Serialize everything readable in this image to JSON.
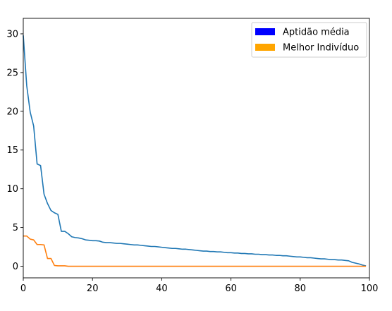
{
  "chart_data": {
    "type": "line",
    "title": "",
    "xlabel": "",
    "ylabel": "",
    "xlim": [
      0,
      100
    ],
    "ylim": [
      -1.5,
      32
    ],
    "x_ticks": [
      0,
      20,
      40,
      60,
      80,
      100
    ],
    "y_ticks": [
      0,
      5,
      10,
      15,
      20,
      25,
      30
    ],
    "x_tick_labels": [
      "0",
      "20",
      "40",
      "60",
      "80",
      "100"
    ],
    "y_tick_labels": [
      "0",
      "5",
      "10",
      "15",
      "20",
      "25",
      "30"
    ],
    "grid": false,
    "legend_position": "top-right",
    "legend": [
      {
        "label": "Aptidão média",
        "color": "#0000ff"
      },
      {
        "label": "Melhor Indivíduo",
        "color": "#ffa500"
      }
    ],
    "series": [
      {
        "color": "#1f77b4",
        "x": [
          0,
          1,
          2,
          3,
          4,
          5,
          6,
          7,
          8,
          9,
          10,
          11,
          12,
          13,
          14,
          15,
          16,
          17,
          18,
          19,
          20,
          21,
          22,
          23,
          24,
          25,
          26,
          27,
          28,
          29,
          30,
          31,
          32,
          33,
          34,
          35,
          36,
          37,
          38,
          39,
          40,
          41,
          42,
          43,
          44,
          45,
          46,
          47,
          48,
          49,
          50,
          51,
          52,
          53,
          54,
          55,
          56,
          57,
          58,
          59,
          60,
          61,
          62,
          63,
          64,
          65,
          66,
          67,
          68,
          69,
          70,
          71,
          72,
          73,
          74,
          75,
          76,
          77,
          78,
          79,
          80,
          81,
          82,
          83,
          84,
          85,
          86,
          87,
          88,
          89,
          90,
          91,
          92,
          93,
          94,
          95,
          96,
          97,
          98,
          99
        ],
        "values": [
          29.8,
          23.3,
          19.9,
          18.1,
          13.2,
          13.0,
          9.3,
          8.1,
          7.2,
          6.9,
          6.7,
          4.5,
          4.5,
          4.2,
          3.8,
          3.7,
          3.65,
          3.55,
          3.4,
          3.35,
          3.3,
          3.3,
          3.25,
          3.1,
          3.05,
          3.05,
          3.0,
          2.95,
          2.95,
          2.9,
          2.85,
          2.8,
          2.75,
          2.75,
          2.7,
          2.65,
          2.6,
          2.55,
          2.55,
          2.5,
          2.45,
          2.4,
          2.35,
          2.3,
          2.3,
          2.25,
          2.2,
          2.2,
          2.15,
          2.1,
          2.05,
          2.0,
          1.95,
          1.95,
          1.9,
          1.9,
          1.85,
          1.85,
          1.8,
          1.75,
          1.75,
          1.7,
          1.7,
          1.65,
          1.65,
          1.6,
          1.6,
          1.55,
          1.55,
          1.5,
          1.5,
          1.45,
          1.45,
          1.4,
          1.4,
          1.35,
          1.35,
          1.3,
          1.25,
          1.2,
          1.2,
          1.15,
          1.1,
          1.1,
          1.05,
          1.0,
          0.95,
          0.95,
          0.9,
          0.85,
          0.85,
          0.8,
          0.8,
          0.75,
          0.7,
          0.5,
          0.4,
          0.3,
          0.15,
          0.05
        ]
      },
      {
        "color": "#ff7f0e",
        "x": [
          0,
          1,
          2,
          3,
          4,
          5,
          6,
          7,
          8,
          9,
          10,
          11,
          12,
          13,
          14,
          15,
          16,
          17,
          18,
          19,
          20,
          21,
          22,
          23,
          24,
          25,
          26,
          27,
          28,
          29,
          30,
          31,
          32,
          33,
          34,
          35,
          36,
          37,
          38,
          39,
          40,
          41,
          42,
          43,
          44,
          45,
          46,
          47,
          48,
          49,
          50,
          51,
          52,
          53,
          54,
          55,
          56,
          57,
          58,
          59,
          60,
          61,
          62,
          63,
          64,
          65,
          66,
          67,
          68,
          69,
          70,
          71,
          72,
          73,
          74,
          75,
          76,
          77,
          78,
          79,
          80,
          81,
          82,
          83,
          84,
          85,
          86,
          87,
          88,
          89,
          90,
          91,
          92,
          93,
          94,
          95,
          96,
          97,
          98,
          99
        ],
        "values": [
          3.9,
          3.9,
          3.5,
          3.4,
          2.8,
          2.8,
          2.75,
          1.0,
          1.0,
          0.1,
          0.05,
          0.05,
          0.05,
          0.0,
          0.0,
          0.0,
          0.0,
          0.0,
          0.0,
          0.0,
          0.0,
          0.0,
          0.0,
          0.0,
          0.0,
          0.0,
          0.0,
          0.0,
          0.0,
          0.0,
          0.0,
          0.0,
          0.0,
          0.0,
          0.0,
          0.0,
          0.0,
          0.0,
          0.0,
          0.0,
          0.0,
          0.0,
          0.0,
          0.0,
          0.0,
          0.0,
          0.0,
          0.0,
          0.0,
          0.0,
          0.0,
          0.0,
          0.0,
          0.0,
          0.0,
          0.0,
          0.0,
          0.0,
          0.0,
          0.0,
          0.0,
          0.0,
          0.0,
          0.0,
          0.0,
          0.0,
          0.0,
          0.0,
          0.0,
          0.0,
          0.0,
          0.0,
          0.0,
          0.0,
          0.0,
          0.0,
          0.0,
          0.0,
          0.0,
          0.0,
          0.0,
          0.0,
          0.0,
          0.0,
          0.0,
          0.0,
          0.0,
          0.0,
          0.0,
          0.0,
          0.0,
          0.0,
          0.0,
          0.0,
          0.0,
          0.0,
          0.0,
          0.0,
          0.0,
          0.0
        ]
      }
    ]
  }
}
